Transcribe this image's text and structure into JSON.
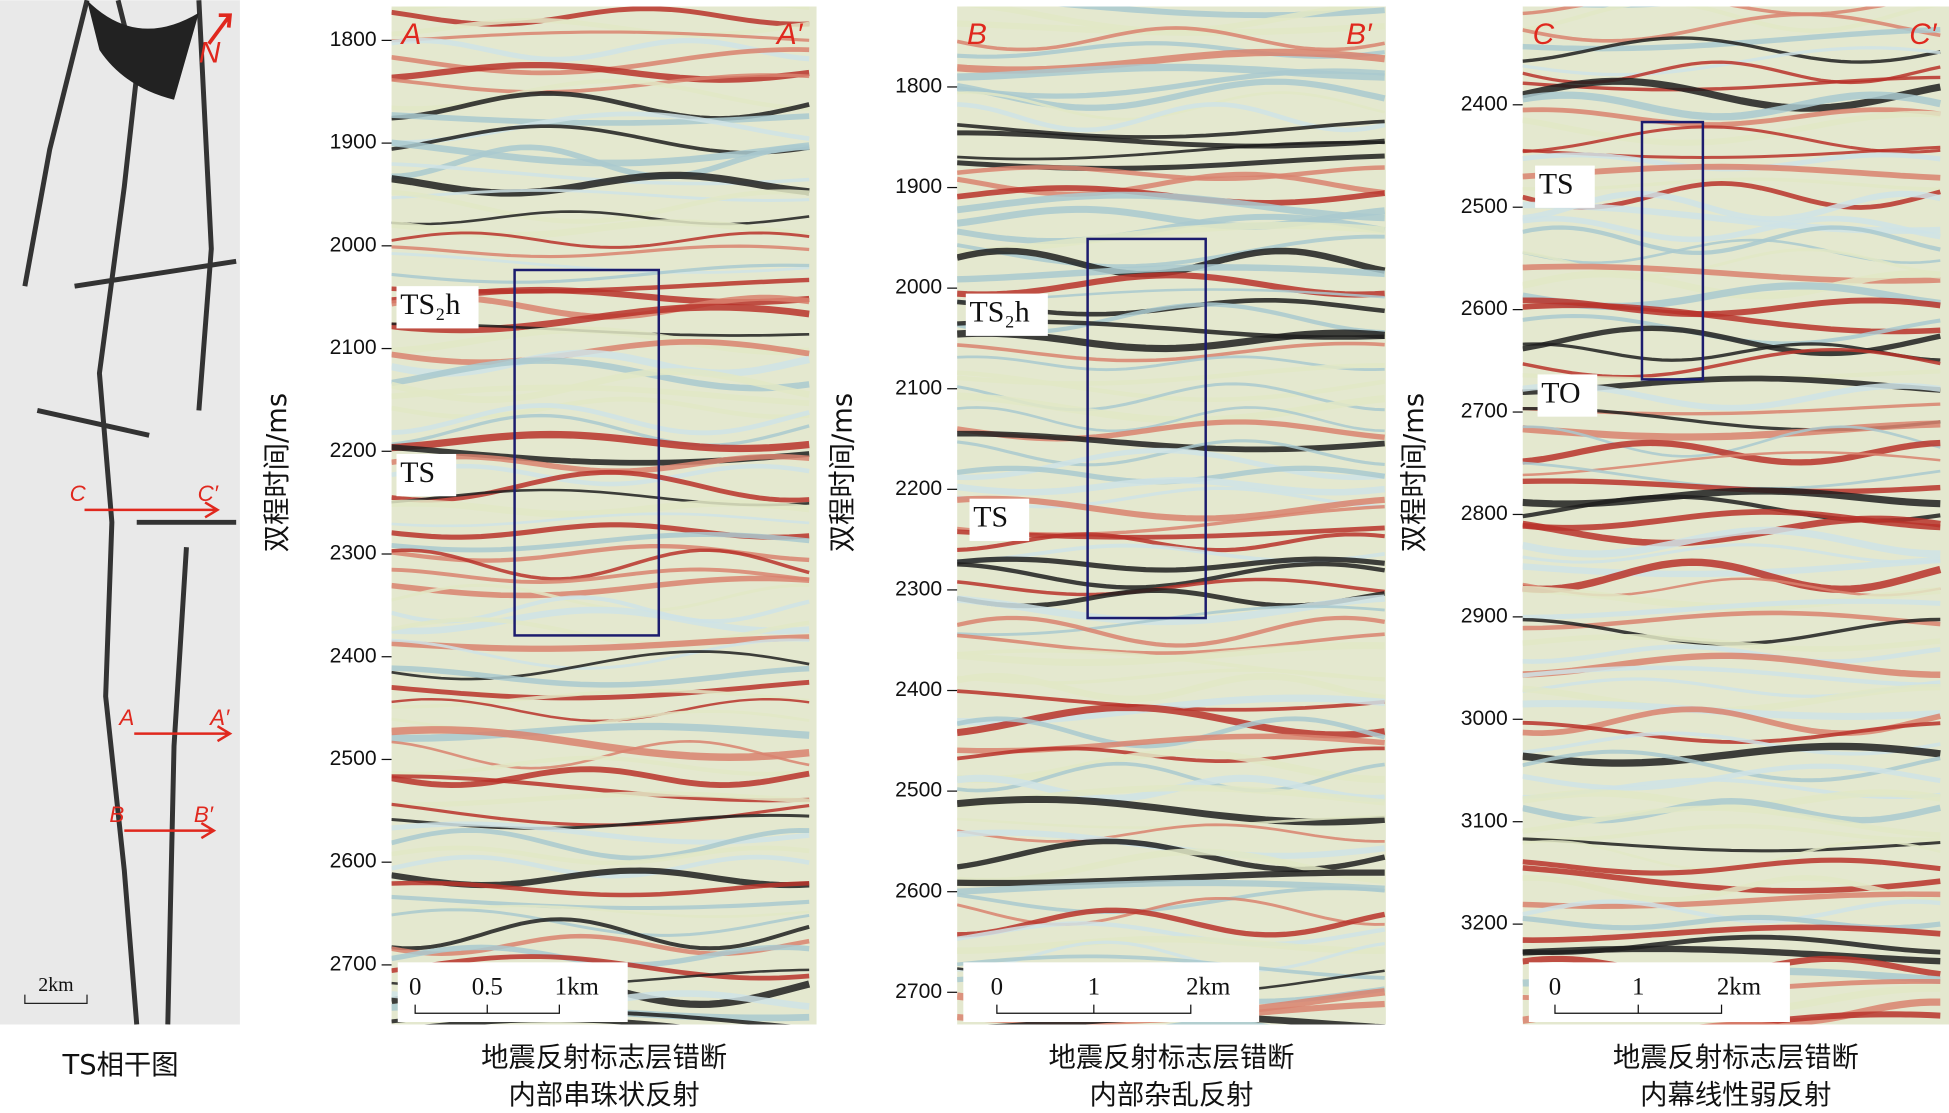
{
  "map": {
    "caption": "TS相干图",
    "north": "N",
    "scale": "2km",
    "sections": [
      {
        "start": "C",
        "end": "C′"
      },
      {
        "start": "A",
        "end": "A′"
      },
      {
        "start": "B",
        "end": "B′"
      }
    ]
  },
  "panels": [
    {
      "start_label": "A",
      "end_label": "A′",
      "y_label": "双程时间/ms",
      "ylim": [
        1767,
        2758
      ],
      "yticks": [
        1800,
        1900,
        2000,
        2100,
        2200,
        2300,
        2400,
        2500,
        2600,
        2700
      ],
      "horizons": [
        "TS₂h",
        "TS"
      ],
      "scale_bar": [
        "0",
        "0.5",
        "1km"
      ],
      "caption": [
        "地震反射标志层错断",
        "内部串珠状反射"
      ]
    },
    {
      "start_label": "B",
      "end_label": "B′",
      "y_label": "双程时间/ms",
      "ylim": [
        1720,
        2732
      ],
      "yticks": [
        1800,
        1900,
        2000,
        2100,
        2200,
        2300,
        2400,
        2500,
        2600,
        2700
      ],
      "horizons": [
        "TS₂h",
        "TS"
      ],
      "scale_bar": [
        "0",
        "1",
        "2km"
      ],
      "caption": [
        "地震反射标志层错断",
        "内部杂乱反射"
      ]
    },
    {
      "start_label": "C",
      "end_label": "C′",
      "y_label": "双程时间/ms",
      "ylim": [
        2304,
        3298
      ],
      "yticks": [
        2400,
        2500,
        2600,
        2700,
        2800,
        2900,
        3000,
        3100,
        3200
      ],
      "horizons": [
        "TS",
        "TO"
      ],
      "scale_bar": [
        "0",
        "1",
        "2km"
      ],
      "caption": [
        "地震反射标志层错断",
        "内幕线性弱反射"
      ]
    }
  ]
}
